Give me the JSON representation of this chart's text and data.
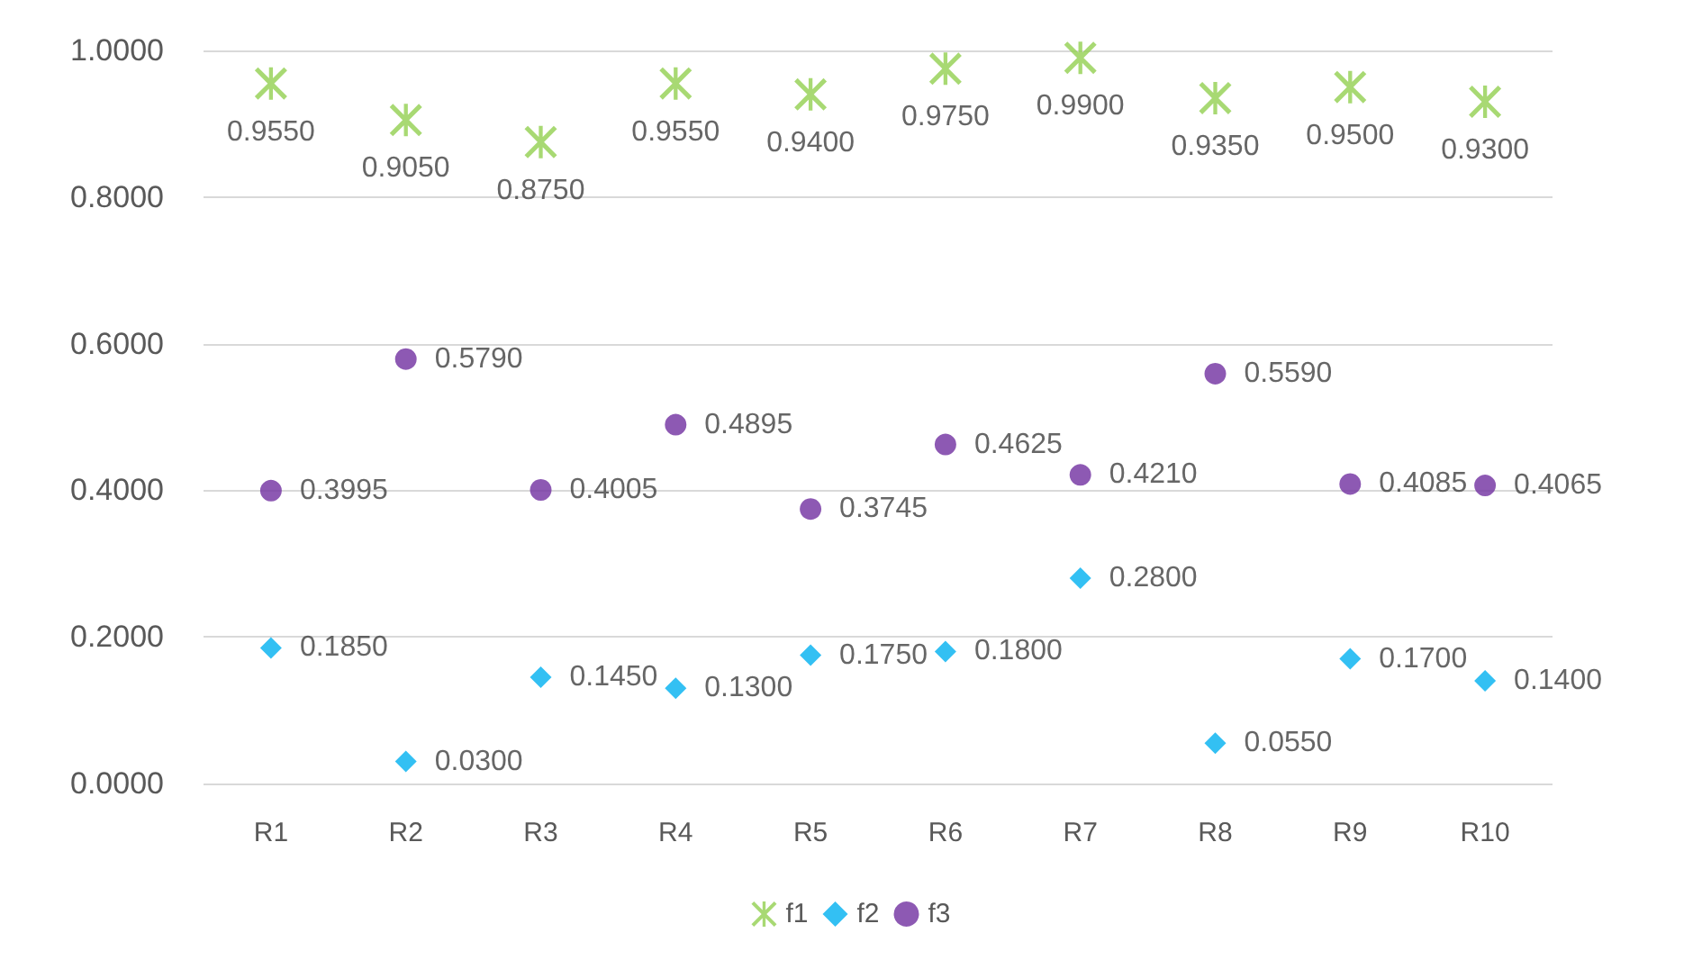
{
  "chart_data": {
    "type": "scatter",
    "categories": [
      "R1",
      "R2",
      "R3",
      "R4",
      "R5",
      "R6",
      "R7",
      "R8",
      "R9",
      "R10"
    ],
    "series": [
      {
        "name": "f1",
        "color": "#92d050",
        "marker": "cross",
        "values": [
          0.955,
          0.905,
          0.875,
          0.955,
          0.94,
          0.975,
          0.99,
          0.935,
          0.95,
          0.93
        ],
        "value_labels": [
          "0.9550",
          "0.9050",
          "0.8750",
          "0.9550",
          "0.9400",
          "0.9750",
          "0.9900",
          "0.9350",
          "0.9500",
          "0.9300"
        ]
      },
      {
        "name": "f2",
        "color": "#00b0f0",
        "marker": "diamond",
        "values": [
          0.185,
          0.03,
          0.145,
          0.13,
          0.175,
          0.18,
          0.28,
          0.055,
          0.17,
          0.14
        ],
        "value_labels": [
          "0.1850",
          "0.0300",
          "0.1450",
          "0.1300",
          "0.1750",
          "0.1800",
          "0.2800",
          "0.0550",
          "0.1700",
          "0.1400"
        ]
      },
      {
        "name": "f3",
        "color": "#7030a0",
        "marker": "circle",
        "values": [
          0.3995,
          0.579,
          0.4005,
          0.4895,
          0.3745,
          0.4625,
          0.421,
          0.559,
          0.4085,
          0.4065
        ],
        "value_labels": [
          "0.3995",
          "0.5790",
          "0.4005",
          "0.4895",
          "0.3745",
          "0.4625",
          "0.4210",
          "0.5590",
          "0.4085",
          "0.4065"
        ]
      }
    ],
    "ylim": [
      0,
      1
    ],
    "yticks": [
      {
        "value": 0,
        "label": "0.0000"
      },
      {
        "value": 0.2,
        "label": "0.2000"
      },
      {
        "value": 0.4,
        "label": "0.4000"
      },
      {
        "value": 0.6,
        "label": "0.6000"
      },
      {
        "value": 0.8,
        "label": "0.8000"
      },
      {
        "value": 1,
        "label": "1.0000"
      }
    ],
    "grid": "y",
    "legend": "bottom"
  }
}
